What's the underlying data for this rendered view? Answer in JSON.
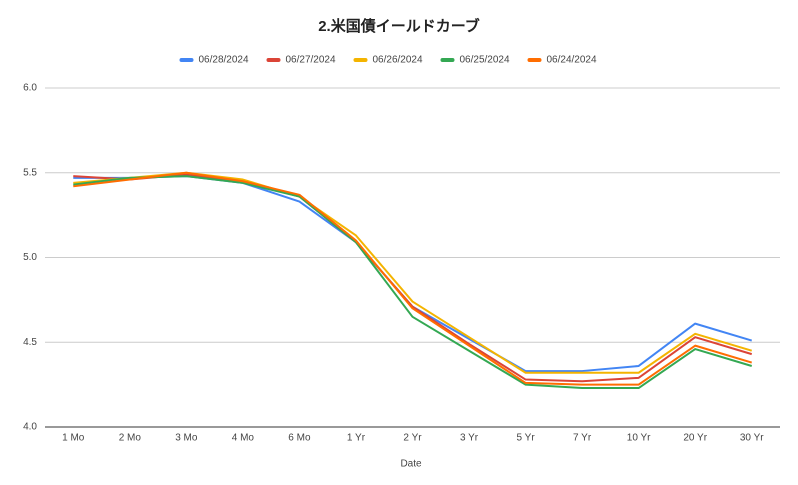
{
  "chart_data": {
    "type": "line",
    "title": "2.米国債イールドカーブ",
    "x_label": "Date",
    "categories": [
      "1 Mo",
      "2 Mo",
      "3 Mo",
      "4 Mo",
      "6 Mo",
      "1 Yr",
      "2 Yr",
      "3 Yr",
      "5 Yr",
      "7 Yr",
      "10 Yr",
      "20 Yr",
      "30 Yr"
    ],
    "series": [
      {
        "name": "06/28/2024",
        "color": "#4285f4",
        "values": [
          5.47,
          5.47,
          5.48,
          5.44,
          5.33,
          5.09,
          4.71,
          4.52,
          4.33,
          4.33,
          4.36,
          4.61,
          4.51
        ]
      },
      {
        "name": "06/27/2024",
        "color": "#db4437",
        "values": [
          5.48,
          5.46,
          5.49,
          5.45,
          5.36,
          5.09,
          4.71,
          4.49,
          4.28,
          4.27,
          4.29,
          4.53,
          4.43
        ]
      },
      {
        "name": "06/26/2024",
        "color": "#f4b400",
        "values": [
          5.44,
          5.47,
          5.5,
          5.46,
          5.36,
          5.13,
          4.74,
          4.53,
          4.32,
          4.32,
          4.32,
          4.55,
          4.45
        ]
      },
      {
        "name": "06/25/2024",
        "color": "#34a853",
        "values": [
          5.43,
          5.47,
          5.48,
          5.44,
          5.36,
          5.09,
          4.65,
          4.45,
          4.25,
          4.23,
          4.23,
          4.46,
          4.36
        ]
      },
      {
        "name": "06/24/2024",
        "color": "#ff6d01",
        "values": [
          5.42,
          5.46,
          5.5,
          5.45,
          5.37,
          5.1,
          4.7,
          4.48,
          4.26,
          4.25,
          4.25,
          4.48,
          4.38
        ]
      }
    ],
    "ylim": [
      4,
      6
    ],
    "yticks": [
      {
        "value": 4,
        "label": "4.0"
      },
      4.5,
      {
        "value": 5,
        "label": "5.0"
      },
      5.5,
      {
        "value": 6,
        "label": "6.0"
      }
    ],
    "grid": true,
    "legend": "top"
  }
}
